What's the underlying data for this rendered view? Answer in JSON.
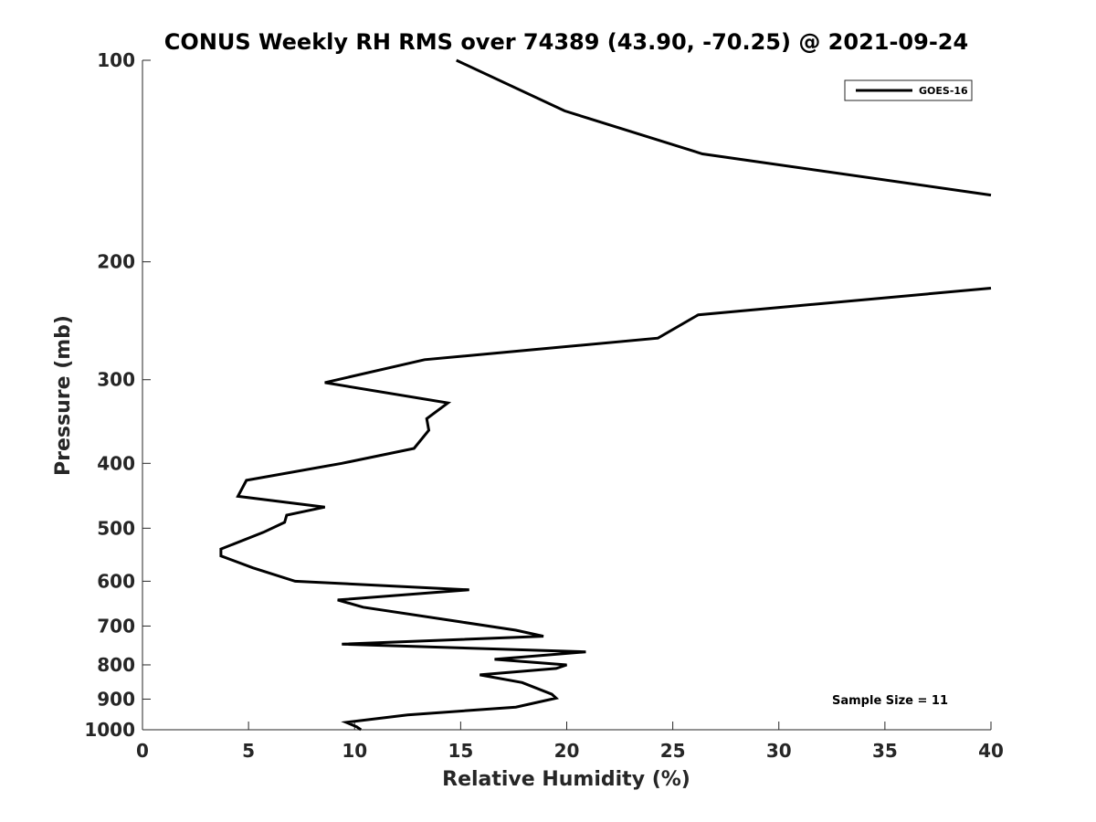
{
  "chart_data": {
    "type": "line",
    "title": "CONUS Weekly RH RMS over 74389 (43.90, -70.25) @ 2021-09-24",
    "xlabel": "Relative Humidity (%)",
    "ylabel": "Pressure (mb)",
    "xlim": [
      0,
      40
    ],
    "ylim": [
      1000,
      100
    ],
    "y_scale": "log",
    "y_reversed": true,
    "x_ticks": [
      "0",
      "5",
      "10",
      "15",
      "20",
      "25",
      "30",
      "35",
      "40"
    ],
    "y_ticks": [
      "100",
      "200",
      "300",
      "400",
      "500",
      "600",
      "700",
      "800",
      "900",
      "1000"
    ],
    "grid": false,
    "legend_position": "top-right",
    "series": [
      {
        "name": "GOES-16",
        "color": "#000000",
        "points": [
          [
            14.8,
            100
          ],
          [
            19.9,
            119
          ],
          [
            26.4,
            138
          ],
          [
            40,
            159
          ],
          [
            null,
            null
          ],
          [
            40,
            219
          ],
          [
            26.2,
            240
          ],
          [
            24.3,
            260
          ],
          [
            13.3,
            280
          ],
          [
            8.6,
            303
          ],
          [
            14.4,
            325
          ],
          [
            13.4,
            343
          ],
          [
            13.5,
            357
          ],
          [
            12.8,
            380
          ],
          [
            9.4,
            400
          ],
          [
            4.9,
            424
          ],
          [
            4.5,
            448
          ],
          [
            8.6,
            465
          ],
          [
            6.8,
            478
          ],
          [
            6.7,
            490
          ],
          [
            5.7,
            507
          ],
          [
            3.7,
            537
          ],
          [
            3.7,
            550
          ],
          [
            5.2,
            573
          ],
          [
            7.2,
            600
          ],
          [
            15.4,
            618
          ],
          [
            9.2,
            640
          ],
          [
            10.4,
            656
          ],
          [
            15.0,
            690
          ],
          [
            17.6,
            710
          ],
          [
            18.9,
            725
          ],
          [
            9.4,
            745
          ],
          [
            20.9,
            765
          ],
          [
            16.6,
            785
          ],
          [
            20.0,
            800
          ],
          [
            19.5,
            810
          ],
          [
            15.9,
            828
          ],
          [
            17.9,
            850
          ],
          [
            19.3,
            885
          ],
          [
            19.5,
            897
          ],
          [
            17.6,
            925
          ],
          [
            12.5,
            950
          ],
          [
            9.6,
            975
          ],
          [
            10.1,
            990
          ],
          [
            10.3,
            1000
          ]
        ]
      }
    ],
    "annotation": "Sample Size = 11"
  }
}
